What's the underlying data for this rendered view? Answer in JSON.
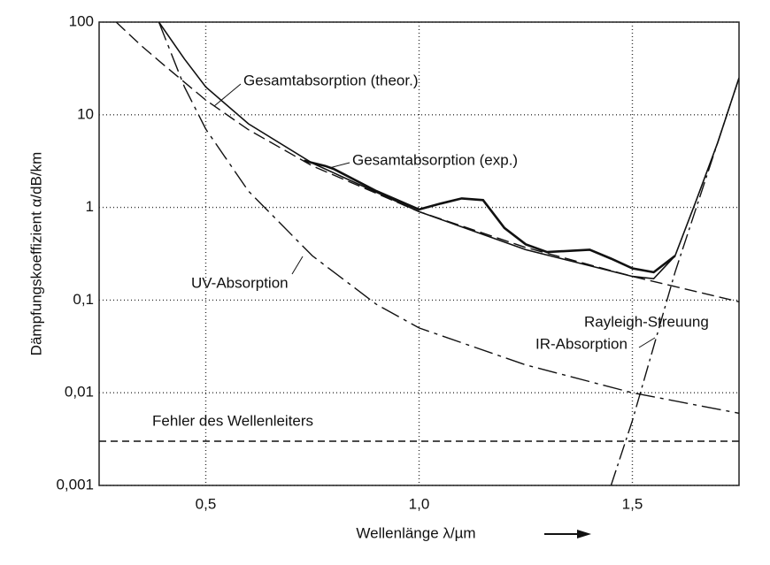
{
  "chart_data": {
    "type": "line",
    "log_y": true,
    "grid": true,
    "x_label": "Wellenlänge  λ/µm",
    "y_label": "Dämpfungskoeffizient  α/dB/km",
    "xlim": [
      0.25,
      1.75
    ],
    "xticks": [
      {
        "value": 0.5,
        "label": "0,5"
      },
      {
        "value": 1.0,
        "label": "1,0"
      },
      {
        "value": 1.5,
        "label": "1,5"
      }
    ],
    "ylim": [
      0.001,
      100
    ],
    "yticks": [
      {
        "value": 0.001,
        "label": "0,001"
      },
      {
        "value": 0.01,
        "label": "0,01"
      },
      {
        "value": 0.1,
        "label": "0,1"
      },
      1,
      10,
      100
    ],
    "series": [
      {
        "name": "Gesamtabsorption (theor.)",
        "color": "#111111",
        "x": [
          0.39,
          0.45,
          0.5,
          0.6,
          0.75,
          1.0,
          1.25,
          1.5,
          1.55,
          1.6,
          1.65,
          1.7,
          1.75
        ],
        "values": [
          100,
          40,
          20,
          8,
          3,
          0.9,
          0.35,
          0.18,
          0.17,
          0.3,
          1.2,
          5,
          25
        ]
      },
      {
        "name": "Gesamtabsorption (exp.)",
        "color": "#111111",
        "x": [
          0.73,
          0.78,
          0.8,
          0.9,
          1.0,
          1.05,
          1.1,
          1.15,
          1.2,
          1.25,
          1.3,
          1.4,
          1.45,
          1.5,
          1.55,
          1.6
        ],
        "values": [
          3.2,
          2.8,
          2.6,
          1.5,
          0.95,
          1.1,
          1.25,
          1.2,
          0.6,
          0.4,
          0.33,
          0.35,
          0.28,
          0.22,
          0.2,
          0.3
        ]
      },
      {
        "name": "UV-Absorption",
        "color": "#111111",
        "x": [
          0.39,
          0.45,
          0.5,
          0.6,
          0.75,
          0.9,
          1.0,
          1.25,
          1.5,
          1.75
        ],
        "values": [
          100,
          20,
          7,
          1.5,
          0.3,
          0.09,
          0.05,
          0.02,
          0.01,
          0.006
        ]
      },
      {
        "name": "Rayleigh-Streuung",
        "color": "#111111",
        "x": [
          0.29,
          0.35,
          0.4,
          0.5,
          0.6,
          0.75,
          1.0,
          1.25,
          1.5,
          1.75
        ],
        "values": [
          100,
          55,
          35,
          14.4,
          6.9,
          2.8,
          0.9,
          0.37,
          0.18,
          0.096
        ]
      },
      {
        "name": "IR-Absorption",
        "color": "#111111",
        "x": [
          1.45,
          1.5,
          1.6,
          1.7,
          1.75
        ],
        "values": [
          0.001,
          0.005,
          0.2,
          5,
          25
        ]
      },
      {
        "name": "Fehler des Wellenleiters",
        "color": "#111111",
        "x": [
          0.25,
          1.75
        ],
        "values": [
          0.003,
          0.003
        ]
      }
    ]
  }
}
